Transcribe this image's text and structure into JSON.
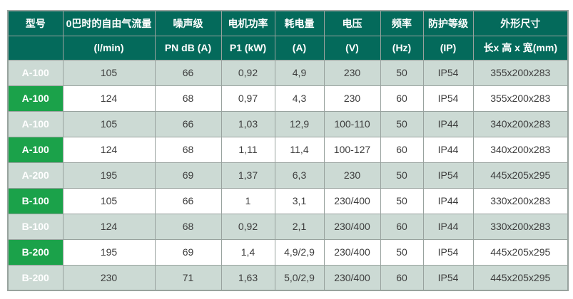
{
  "colors": {
    "header_bg": "#046A5B",
    "header_text": "#FFFFFF",
    "model_bg": "#1BA24A",
    "model_text": "#FFFFFF",
    "row_alt_bg": "#CCDAD4",
    "row_bg": "#FFFFFF",
    "border": "#98A29E",
    "body_text": "#3D3D3D",
    "page_bg": "#FFFFFF"
  },
  "table": {
    "columns": [
      {
        "key": "model",
        "label": "型号",
        "unit": ""
      },
      {
        "key": "airflow",
        "label": "0巴时的自由气流量",
        "unit": "(l/min)"
      },
      {
        "key": "noise",
        "label": "噪声级",
        "unit": "PN dB (A)"
      },
      {
        "key": "motor-power",
        "label": "电机功率",
        "unit": "P1 (kW)"
      },
      {
        "key": "consumption",
        "label": "耗电量",
        "unit": "(A)"
      },
      {
        "key": "voltage",
        "label": "电压",
        "unit": "(V)"
      },
      {
        "key": "frequency",
        "label": "频率",
        "unit": "(Hz)"
      },
      {
        "key": "protection",
        "label": "防护等级",
        "unit": "(IP)"
      },
      {
        "key": "dimensions",
        "label": "外形尺寸",
        "unit": "长x 高 x 宽(mm)"
      }
    ],
    "rows": [
      [
        "A-100",
        "105",
        "66",
        "0,92",
        "4,9",
        "230",
        "50",
        "IP54",
        "355x200x283"
      ],
      [
        "A-100",
        "124",
        "68",
        "0,97",
        "4,3",
        "230",
        "60",
        "IP54",
        "355x200x283"
      ],
      [
        "A-100",
        "105",
        "66",
        "1,03",
        "12,9",
        "100-110",
        "50",
        "IP44",
        "340x200x283"
      ],
      [
        "A-100",
        "124",
        "68",
        "1,11",
        "11,4",
        "100-127",
        "60",
        "IP44",
        "340x200x283"
      ],
      [
        "A-200",
        "195",
        "69",
        "1,37",
        "6,3",
        "230",
        "50",
        "IP54",
        "445x205x295"
      ],
      [
        "B-100",
        "105",
        "66",
        "1",
        "3,1",
        "230/400",
        "50",
        "IP44",
        "330x200x283"
      ],
      [
        "B-100",
        "124",
        "68",
        "0,92",
        "2,1",
        "230/400",
        "60",
        "IP44",
        "330x200x283"
      ],
      [
        "B-200",
        "195",
        "69",
        "1,4",
        "4,9/2,9",
        "230/400",
        "50",
        "IP54",
        "445x205x295"
      ],
      [
        "B-200",
        "230",
        "71",
        "1,63",
        "5,0/2,9",
        "230/400",
        "60",
        "IP54",
        "445x205x295"
      ]
    ]
  }
}
